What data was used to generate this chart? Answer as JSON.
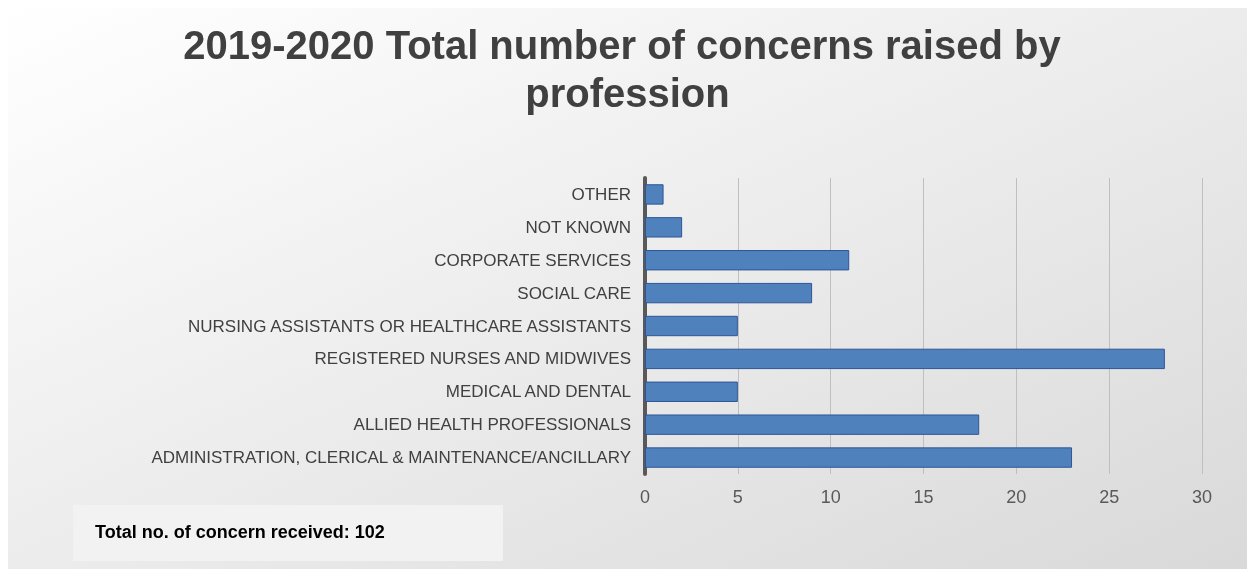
{
  "chart_data": {
    "type": "bar",
    "orientation": "horizontal",
    "title": "2019-2020 Total number of concerns raised by profession",
    "categories": [
      "OTHER",
      "NOT KNOWN",
      "CORPORATE SERVICES",
      "SOCIAL CARE",
      "NURSING ASSISTANTS OR HEALTHCARE ASSISTANTS",
      "REGISTERED NURSES AND MIDWIVES",
      "MEDICAL AND DENTAL",
      "ALLIED HEALTH PROFESSIONALS",
      "ADMINISTRATION, CLERICAL & MAINTENANCE/ANCILLARY"
    ],
    "values": [
      1,
      2,
      11,
      9,
      5,
      28,
      5,
      18,
      23
    ],
    "color": "#4f81bd",
    "xlim": [
      0,
      30
    ],
    "xticks": [
      0,
      5,
      10,
      15,
      20,
      25,
      30
    ],
    "grid": "x",
    "annotations": [
      "Total no. of concern received: 102"
    ]
  }
}
